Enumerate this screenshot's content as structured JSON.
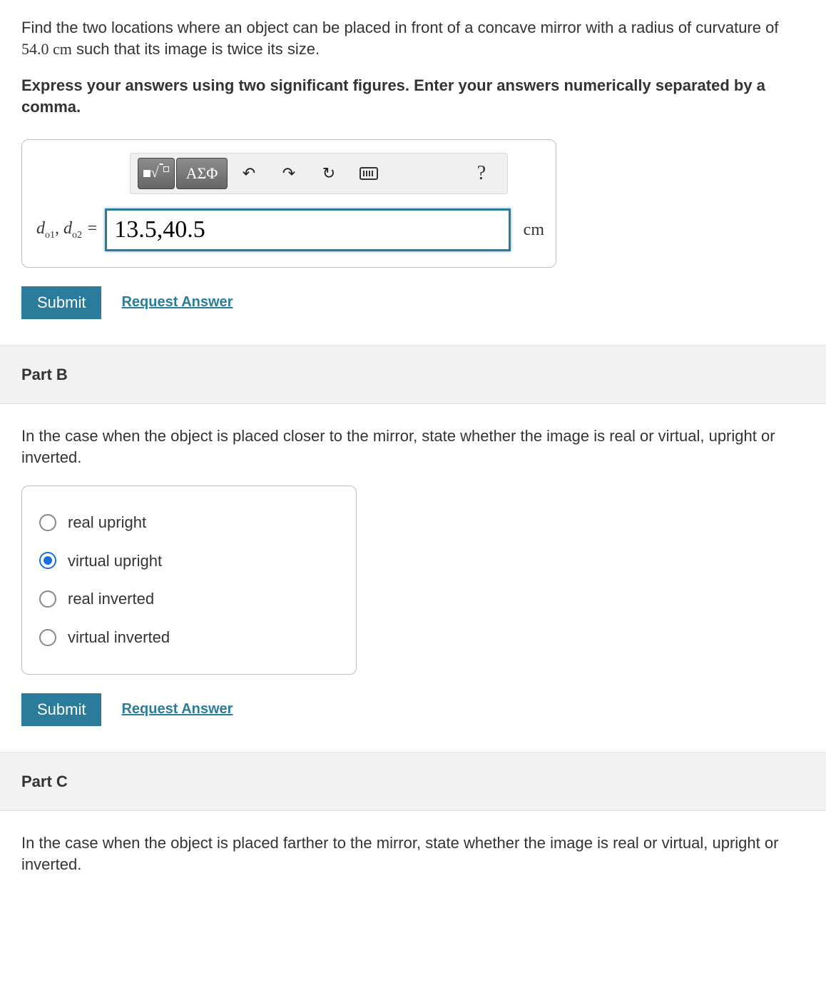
{
  "colors": {
    "accent": "#2b7b9b",
    "radio_selected": "#1a6fe0",
    "panel_border": "#bfbfbf",
    "part_bg": "#f2f2f2",
    "text": "#333333"
  },
  "problem": {
    "sentence_pre": "Find the two locations where an object can be placed in front of a concave mirror with a radius of curvature of ",
    "radius_value": "54.0 cm",
    "sentence_post": " such that its image is twice its size.",
    "instruction": "Express your answers using two significant figures. Enter your answers numerically separated by a comma."
  },
  "toolbar": {
    "templates_icon": "templates",
    "greek_label": "ΑΣΦ",
    "undo_icon": "↶",
    "redo_icon": "↷",
    "reset_icon": "↻",
    "keyboard_icon": "keyboard",
    "help_icon": "?"
  },
  "partA": {
    "var_label_html": "d_o1, d_o2 =",
    "var1_base": "d",
    "var1_sub": "o1",
    "var_sep": ", ",
    "var2_base": "d",
    "var2_sub": "o2",
    "var_eq": " = ",
    "input_value": "13.5,40.5",
    "unit": "cm",
    "submit": "Submit",
    "request": "Request Answer"
  },
  "partB": {
    "header": "Part B",
    "question": "In the case when the object is placed closer to the mirror, state whether the image is real or virtual, upright or inverted.",
    "options": [
      {
        "label": "real upright",
        "selected": false
      },
      {
        "label": "virtual upright",
        "selected": true
      },
      {
        "label": "real inverted",
        "selected": false
      },
      {
        "label": "virtual inverted",
        "selected": false
      }
    ],
    "submit": "Submit",
    "request": "Request Answer"
  },
  "partC": {
    "header": "Part C",
    "question": "In the case when the object is placed farther to the mirror, state whether the image is real or virtual, upright or inverted."
  }
}
